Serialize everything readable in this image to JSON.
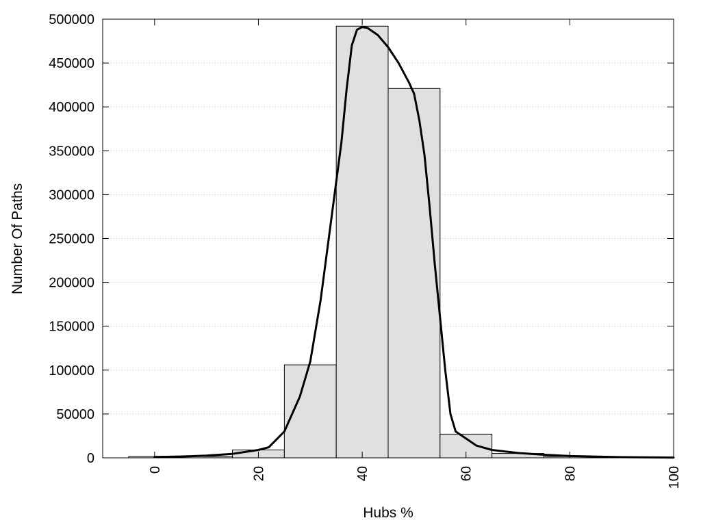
{
  "chart_data": {
    "type": "bar",
    "xlabel": "Hubs %",
    "ylabel": "Number Of Paths",
    "xlim": [
      -10,
      100
    ],
    "ylim": [
      0,
      500000
    ],
    "x_ticks": [
      0,
      20,
      40,
      60,
      80,
      100
    ],
    "y_ticks": [
      0,
      50000,
      100000,
      150000,
      200000,
      250000,
      300000,
      350000,
      400000,
      450000,
      500000
    ],
    "grid": "horizontal dotted",
    "bar_width": 10,
    "bars": [
      {
        "x": 0,
        "value": 1500
      },
      {
        "x": 10,
        "value": 1500
      },
      {
        "x": 20,
        "value": 9000
      },
      {
        "x": 30,
        "value": 106000
      },
      {
        "x": 40,
        "value": 492000
      },
      {
        "x": 50,
        "value": 421000
      },
      {
        "x": 60,
        "value": 27000
      },
      {
        "x": 70,
        "value": 5000
      },
      {
        "x": 80,
        "value": 1500
      },
      {
        "x": 90,
        "value": 500
      },
      {
        "x": 100,
        "value": 500
      }
    ],
    "curve": [
      [
        0,
        1000
      ],
      [
        5,
        1500
      ],
      [
        10,
        2500
      ],
      [
        15,
        4500
      ],
      [
        20,
        9000
      ],
      [
        22,
        12000
      ],
      [
        25,
        30000
      ],
      [
        28,
        70000
      ],
      [
        30,
        110000
      ],
      [
        32,
        180000
      ],
      [
        34,
        270000
      ],
      [
        36,
        360000
      ],
      [
        37,
        420000
      ],
      [
        38,
        470000
      ],
      [
        39,
        488000
      ],
      [
        40,
        491000
      ],
      [
        41,
        490000
      ],
      [
        43,
        482000
      ],
      [
        45,
        468000
      ],
      [
        47,
        450000
      ],
      [
        49,
        428000
      ],
      [
        50,
        415000
      ],
      [
        51,
        385000
      ],
      [
        52,
        345000
      ],
      [
        53,
        285000
      ],
      [
        54,
        220000
      ],
      [
        55,
        160000
      ],
      [
        56,
        100000
      ],
      [
        57,
        50000
      ],
      [
        58,
        30000
      ],
      [
        60,
        22000
      ],
      [
        62,
        14000
      ],
      [
        65,
        9000
      ],
      [
        70,
        5500
      ],
      [
        75,
        3500
      ],
      [
        80,
        2000
      ],
      [
        90,
        800
      ],
      [
        100,
        300
      ]
    ],
    "colors": {
      "bar_fill": "#e0e0e0",
      "bar_stroke": "#000000",
      "curve": "#000000",
      "grid": "#bfbfbf"
    }
  }
}
